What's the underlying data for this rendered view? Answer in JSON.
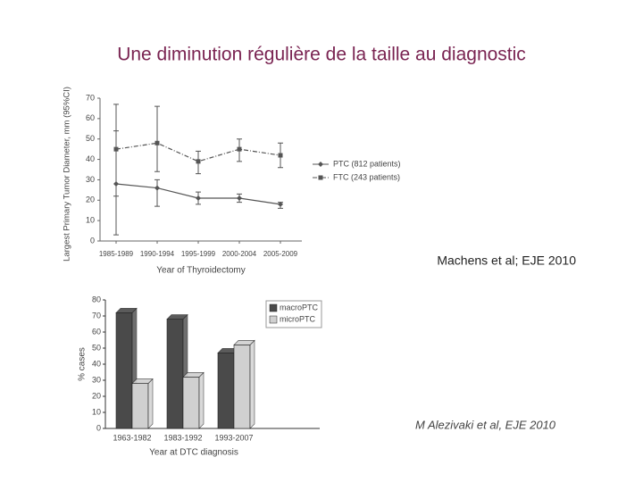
{
  "title": "Une diminution régulière de la taille au diagnostic",
  "citations": [
    "Machens et al; EJE 2010",
    "M Alezivaki et al,  EJE 2010"
  ],
  "chart_data": [
    {
      "type": "line",
      "categories": [
        "1985-1989",
        "1990-1994",
        "1995-1999",
        "2000-2004",
        "2005-2009"
      ],
      "ylabel": "Largest Primary Tumor Diameter, mm (95%CI)",
      "xlabel": "Year of Thyroidectomy",
      "ylim": [
        0,
        70
      ],
      "yticks": [
        0,
        10,
        20,
        30,
        40,
        50,
        60,
        70
      ],
      "series": [
        {
          "name": "PTC (812 patients)",
          "color": "#555555",
          "dash": "solid",
          "marker": "diamond",
          "values": [
            28,
            26,
            21,
            21,
            18
          ],
          "lower": [
            3,
            17,
            18,
            19,
            16
          ],
          "upper": [
            54,
            30,
            24,
            23,
            19
          ]
        },
        {
          "name": "FTC (243 patients)",
          "color": "#555555",
          "dash": "dashdot",
          "marker": "square",
          "values": [
            45,
            48,
            39,
            45,
            42
          ],
          "lower": [
            22,
            34,
            33,
            39,
            36
          ],
          "upper": [
            67,
            66,
            44,
            50,
            48
          ]
        }
      ]
    },
    {
      "type": "bar",
      "categories": [
        "1963-1982",
        "1983-1992",
        "1993-2007"
      ],
      "ylabel": "% cases",
      "xlabel": "Year at DTC diagnosis",
      "ylim": [
        0,
        80
      ],
      "yticks": [
        0,
        10,
        20,
        30,
        40,
        50,
        60,
        70,
        80
      ],
      "series": [
        {
          "name": "macroPTC",
          "color": "#4a4a4a",
          "values": [
            72,
            68,
            47
          ]
        },
        {
          "name": "microPTC",
          "color": "#d0d0d0",
          "values": [
            28,
            32,
            52
          ]
        }
      ]
    }
  ]
}
